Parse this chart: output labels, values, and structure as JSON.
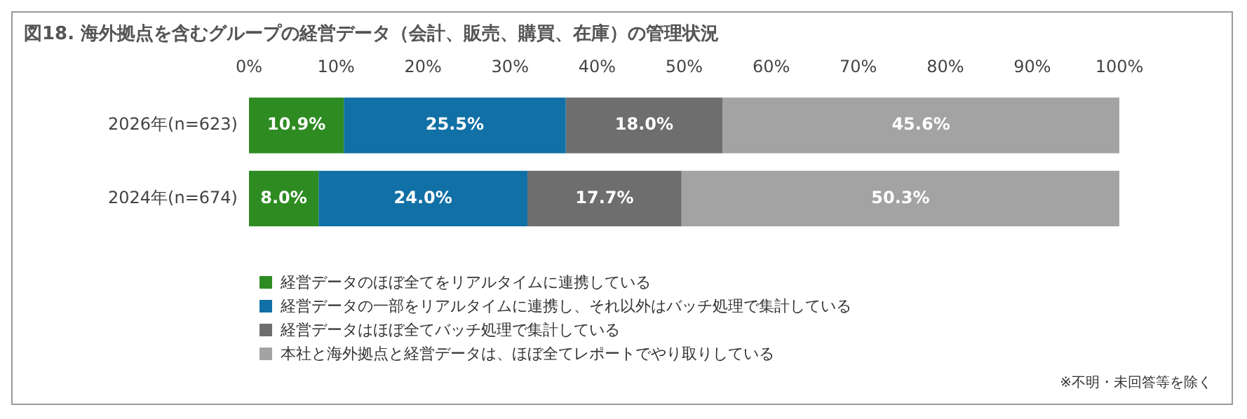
{
  "chart_data": {
    "type": "bar",
    "orientation": "horizontal",
    "stacked": true,
    "title": "図18. 海外拠点を含むグループの経営データ（会計、販売、購買、在庫）の管理状況",
    "categories": [
      "2026年(n=623)",
      "2024年(n=674)"
    ],
    "series": [
      {
        "name": "経営データのほぼ全てをリアルタイムに連携している",
        "color": "#2e8b22",
        "values": [
          10.9,
          8.0
        ]
      },
      {
        "name": "経営データの一部をリアルタイムに連携し、それ以外はバッチ処理で集計している",
        "color": "#1170a6",
        "values": [
          25.5,
          24.0
        ]
      },
      {
        "name": "経営データはほぼ全てバッチ処理で集計している",
        "color": "#6e6e6e",
        "values": [
          18.0,
          17.7
        ]
      },
      {
        "name": "本社と海外拠点と経営データは、ほぼ全てレポートでやり取りしている",
        "color": "#a3a3a3",
        "values": [
          45.6,
          50.3
        ]
      }
    ],
    "xlim": [
      0,
      100
    ],
    "xticks": [
      {
        "value": 0,
        "label": "0%"
      },
      {
        "value": 10,
        "label": "10%"
      },
      {
        "value": 20,
        "label": "20%"
      },
      {
        "value": 30,
        "label": "30%"
      },
      {
        "value": 40,
        "label": "40%"
      },
      {
        "value": 50,
        "label": "50%"
      },
      {
        "value": 60,
        "label": "60%"
      },
      {
        "value": 70,
        "label": "70%"
      },
      {
        "value": 80,
        "label": "80%"
      },
      {
        "value": 90,
        "label": "90%"
      },
      {
        "value": 100,
        "label": "100%"
      }
    ],
    "value_labels": [
      [
        "10.9%",
        "8.0%"
      ],
      [
        "25.5%",
        "24.0%"
      ],
      [
        "18.0%",
        "17.7%"
      ],
      [
        "45.6%",
        "50.3%"
      ]
    ],
    "legend": "bottom",
    "grid": false,
    "annotations": [
      "※不明・未回答等を除く"
    ]
  }
}
